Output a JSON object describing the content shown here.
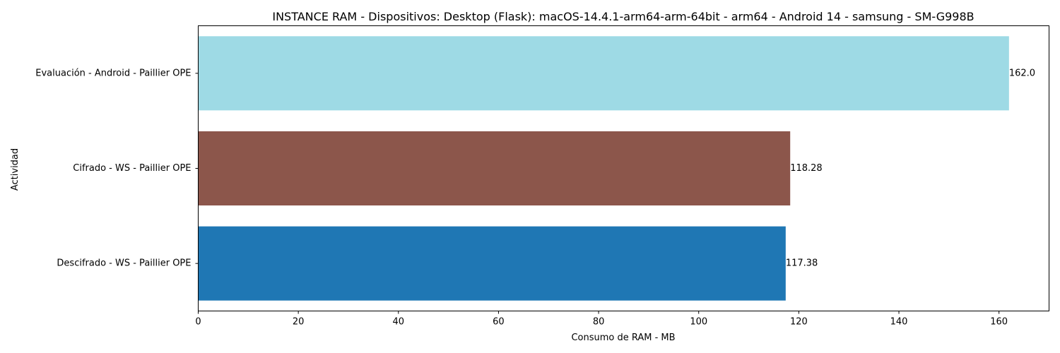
{
  "chart_data": {
    "type": "bar",
    "orientation": "horizontal",
    "title": "INSTANCE RAM - Dispositivos: Desktop (Flask): macOS-14.4.1-arm64-arm-64bit - arm64 - Android 14 - samsung - SM-G998B",
    "xlabel": "Consumo de RAM - MB",
    "ylabel": "Actividad",
    "xlim": [
      0,
      170
    ],
    "xticks": [
      0,
      20,
      40,
      60,
      80,
      100,
      120,
      140,
      160
    ],
    "xtick_labels": [
      "0",
      "20",
      "40",
      "60",
      "80",
      "100",
      "120",
      "140",
      "160"
    ],
    "grid": false,
    "categories": [
      "Descifrado - WS - Paillier OPE",
      "Cifrado - WS - Paillier OPE",
      "Evaluación - Android - Paillier OPE"
    ],
    "values": [
      117.38,
      118.28,
      162.0
    ],
    "value_labels": [
      "117.38",
      "118.28",
      "162.0"
    ],
    "colors": [
      "#1f77b4",
      "#8c564b",
      "#9edae5"
    ]
  }
}
